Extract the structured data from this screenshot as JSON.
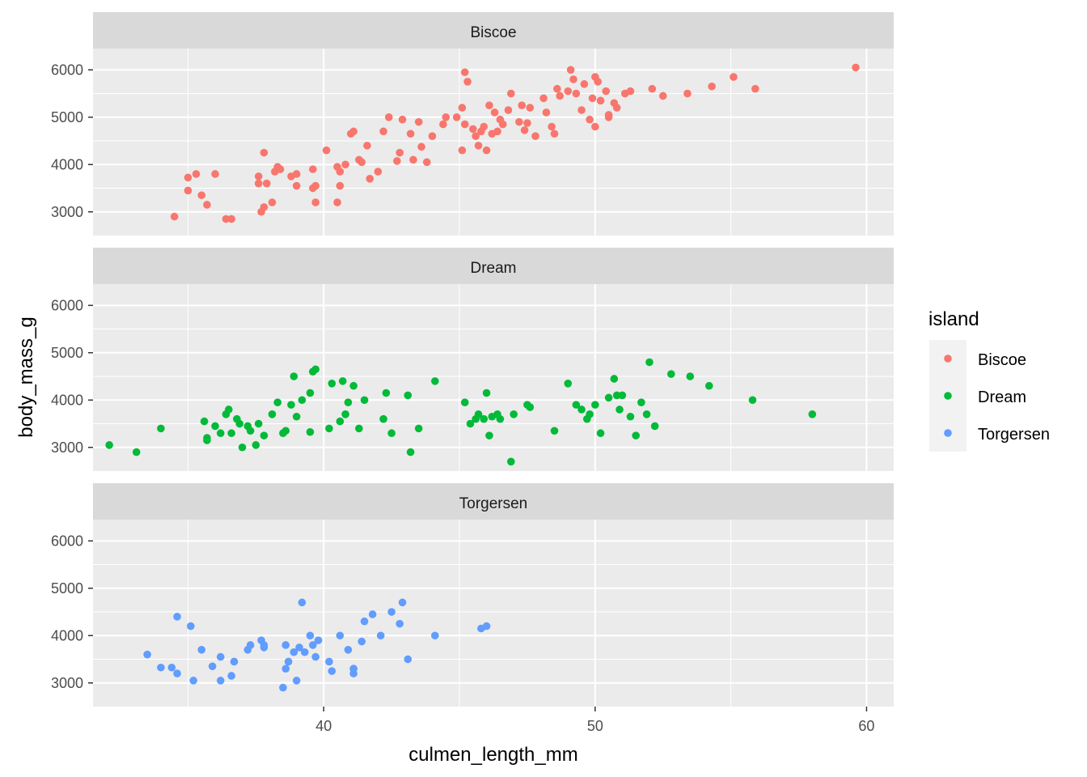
{
  "chart_data": {
    "type": "scatter",
    "facet_by": "island",
    "xlabel": "culmen_length_mm",
    "ylabel": "body_mass_g",
    "x_ticks": [
      40,
      50,
      60
    ],
    "y_ticks": [
      3000,
      4000,
      5000,
      6000
    ],
    "xlim": [
      31.5,
      61.0
    ],
    "ylim": [
      2500,
      6450
    ],
    "grid": true,
    "legend": {
      "title": "island",
      "position": "right",
      "entries": [
        {
          "label": "Biscoe",
          "color": "#F8766D"
        },
        {
          "label": "Dream",
          "color": "#00BA38"
        },
        {
          "label": "Torgersen",
          "color": "#619CFF"
        }
      ]
    },
    "panels": [
      {
        "strip": "Biscoe",
        "color": "#F8766D",
        "points": [
          [
            34.5,
            2900
          ],
          [
            35.0,
            3450
          ],
          [
            35.0,
            3725
          ],
          [
            35.3,
            3800
          ],
          [
            35.5,
            3350
          ],
          [
            35.7,
            3150
          ],
          [
            36.0,
            3800
          ],
          [
            36.4,
            2850
          ],
          [
            36.6,
            2850
          ],
          [
            37.6,
            3750
          ],
          [
            37.6,
            3600
          ],
          [
            37.7,
            3000
          ],
          [
            37.8,
            3100
          ],
          [
            37.8,
            4250
          ],
          [
            37.9,
            3600
          ],
          [
            38.1,
            3200
          ],
          [
            38.2,
            3850
          ],
          [
            38.3,
            3950
          ],
          [
            38.4,
            3900
          ],
          [
            38.8,
            3750
          ],
          [
            39.0,
            3800
          ],
          [
            39.0,
            3550
          ],
          [
            39.6,
            3500
          ],
          [
            39.6,
            3900
          ],
          [
            39.7,
            3550
          ],
          [
            39.7,
            3200
          ],
          [
            40.1,
            4300
          ],
          [
            40.5,
            3200
          ],
          [
            40.5,
            3950
          ],
          [
            40.6,
            3550
          ],
          [
            40.6,
            3850
          ],
          [
            40.8,
            4000
          ],
          [
            41.0,
            4650
          ],
          [
            41.1,
            4700
          ],
          [
            41.3,
            4100
          ],
          [
            41.4,
            4050
          ],
          [
            41.6,
            4400
          ],
          [
            41.7,
            3700
          ],
          [
            42.0,
            3850
          ],
          [
            42.2,
            4700
          ],
          [
            42.7,
            4075
          ],
          [
            42.8,
            4250
          ],
          [
            42.9,
            4950
          ],
          [
            43.2,
            4650
          ],
          [
            43.3,
            4100
          ],
          [
            43.5,
            4900
          ],
          [
            43.8,
            4050
          ],
          [
            44.0,
            4600
          ],
          [
            44.5,
            5000
          ],
          [
            44.9,
            5000
          ],
          [
            45.1,
            5200
          ],
          [
            45.3,
            5750
          ],
          [
            45.2,
            4850
          ],
          [
            45.1,
            4300
          ],
          [
            45.5,
            4750
          ],
          [
            45.7,
            4400
          ],
          [
            45.9,
            4800
          ],
          [
            46.1,
            5250
          ],
          [
            46.2,
            4650
          ],
          [
            46.4,
            4700
          ],
          [
            46.5,
            4950
          ],
          [
            46.8,
            5150
          ],
          [
            47.2,
            4900
          ],
          [
            47.3,
            5250
          ],
          [
            47.4,
            4725
          ],
          [
            47.6,
            5200
          ],
          [
            47.8,
            4600
          ],
          [
            48.2,
            5100
          ],
          [
            48.4,
            4800
          ],
          [
            48.5,
            4650
          ],
          [
            48.7,
            5450
          ],
          [
            49.1,
            6000
          ],
          [
            49.2,
            5800
          ],
          [
            49.3,
            5500
          ],
          [
            49.5,
            5150
          ],
          [
            49.6,
            5700
          ],
          [
            49.8,
            4950
          ],
          [
            50.0,
            5850
          ],
          [
            50.1,
            5750
          ],
          [
            50.2,
            5350
          ],
          [
            50.4,
            5550
          ],
          [
            50.5,
            5000
          ],
          [
            50.7,
            5300
          ],
          [
            50.8,
            5200
          ],
          [
            51.1,
            5500
          ],
          [
            51.3,
            5550
          ],
          [
            52.1,
            5600
          ],
          [
            52.5,
            5450
          ],
          [
            53.4,
            5500
          ],
          [
            54.3,
            5650
          ],
          [
            55.1,
            5850
          ],
          [
            55.9,
            5600
          ],
          [
            59.6,
            6050
          ],
          [
            45.2,
            5950
          ],
          [
            46.0,
            4300
          ],
          [
            46.6,
            4850
          ],
          [
            47.5,
            4875
          ],
          [
            48.1,
            5400
          ],
          [
            49.0,
            5550
          ],
          [
            50.0,
            4800
          ],
          [
            50.5,
            5050
          ],
          [
            44.4,
            4850
          ],
          [
            45.8,
            4700
          ],
          [
            46.9,
            5500
          ],
          [
            48.6,
            5600
          ],
          [
            49.9,
            5400
          ],
          [
            42.4,
            5000
          ],
          [
            43.6,
            4375
          ],
          [
            45.6,
            4600
          ],
          [
            46.3,
            5100
          ]
        ]
      },
      {
        "strip": "Dream",
        "color": "#00BA38",
        "points": [
          [
            32.1,
            3050
          ],
          [
            33.1,
            2900
          ],
          [
            34.0,
            3400
          ],
          [
            35.6,
            3550
          ],
          [
            35.7,
            3200
          ],
          [
            36.0,
            3450
          ],
          [
            36.2,
            3300
          ],
          [
            36.4,
            3700
          ],
          [
            36.5,
            3800
          ],
          [
            36.6,
            3300
          ],
          [
            36.9,
            3500
          ],
          [
            37.0,
            3000
          ],
          [
            37.2,
            3450
          ],
          [
            37.3,
            3350
          ],
          [
            37.5,
            3050
          ],
          [
            37.8,
            3250
          ],
          [
            38.1,
            3700
          ],
          [
            38.3,
            3950
          ],
          [
            38.6,
            3350
          ],
          [
            38.8,
            3900
          ],
          [
            39.2,
            4000
          ],
          [
            39.5,
            4150
          ],
          [
            39.6,
            4600
          ],
          [
            39.7,
            4650
          ],
          [
            40.2,
            3400
          ],
          [
            40.3,
            4350
          ],
          [
            40.6,
            3550
          ],
          [
            40.8,
            3700
          ],
          [
            41.1,
            4300
          ],
          [
            41.5,
            4000
          ],
          [
            42.2,
            3600
          ],
          [
            42.3,
            4150
          ],
          [
            42.5,
            3300
          ],
          [
            43.1,
            4100
          ],
          [
            43.2,
            2900
          ],
          [
            44.1,
            4400
          ],
          [
            45.2,
            3950
          ],
          [
            45.4,
            3500
          ],
          [
            45.6,
            3600
          ],
          [
            45.9,
            3600
          ],
          [
            46.0,
            4150
          ],
          [
            46.2,
            3650
          ],
          [
            46.4,
            3700
          ],
          [
            46.5,
            3600
          ],
          [
            46.9,
            2700
          ],
          [
            47.0,
            3700
          ],
          [
            47.5,
            3900
          ],
          [
            48.5,
            3350
          ],
          [
            49.0,
            4350
          ],
          [
            49.3,
            3900
          ],
          [
            49.5,
            3800
          ],
          [
            49.7,
            3600
          ],
          [
            50.0,
            3900
          ],
          [
            50.2,
            3300
          ],
          [
            50.5,
            4050
          ],
          [
            50.7,
            4450
          ],
          [
            51.0,
            4100
          ],
          [
            51.3,
            3650
          ],
          [
            51.5,
            3250
          ],
          [
            51.7,
            3950
          ],
          [
            52.0,
            4800
          ],
          [
            52.2,
            3450
          ],
          [
            52.8,
            4550
          ],
          [
            53.5,
            4500
          ],
          [
            54.2,
            4300
          ],
          [
            55.8,
            4000
          ],
          [
            58.0,
            3700
          ],
          [
            38.9,
            4500
          ],
          [
            39.5,
            3325
          ],
          [
            40.9,
            3950
          ],
          [
            36.8,
            3600
          ],
          [
            41.3,
            3400
          ],
          [
            40.7,
            4400
          ],
          [
            46.1,
            3250
          ],
          [
            49.8,
            3700
          ],
          [
            50.9,
            3800
          ],
          [
            45.7,
            3700
          ],
          [
            47.6,
            3850
          ],
          [
            50.8,
            4100
          ],
          [
            51.9,
            3700
          ],
          [
            43.5,
            3400
          ],
          [
            37.6,
            3500
          ],
          [
            35.7,
            3150
          ],
          [
            39.0,
            3650
          ],
          [
            38.5,
            3300
          ]
        ]
      },
      {
        "strip": "Torgersen",
        "color": "#619CFF",
        "points": [
          [
            33.5,
            3600
          ],
          [
            34.4,
            3325
          ],
          [
            34.6,
            3200
          ],
          [
            34.6,
            4400
          ],
          [
            35.1,
            4200
          ],
          [
            35.2,
            3050
          ],
          [
            35.5,
            3700
          ],
          [
            35.9,
            3350
          ],
          [
            36.2,
            3050
          ],
          [
            36.6,
            3150
          ],
          [
            36.7,
            3450
          ],
          [
            37.2,
            3700
          ],
          [
            37.3,
            3800
          ],
          [
            37.7,
            3900
          ],
          [
            37.8,
            3800
          ],
          [
            38.6,
            3300
          ],
          [
            38.6,
            3800
          ],
          [
            38.7,
            3450
          ],
          [
            38.9,
            3650
          ],
          [
            39.0,
            3050
          ],
          [
            39.1,
            3750
          ],
          [
            39.2,
            4700
          ],
          [
            39.3,
            3650
          ],
          [
            39.6,
            3800
          ],
          [
            39.7,
            3550
          ],
          [
            39.8,
            3900
          ],
          [
            40.2,
            3450
          ],
          [
            40.3,
            3250
          ],
          [
            40.6,
            4000
          ],
          [
            40.9,
            3700
          ],
          [
            41.1,
            3300
          ],
          [
            41.1,
            3200
          ],
          [
            41.4,
            3875
          ],
          [
            41.5,
            4300
          ],
          [
            41.8,
            4450
          ],
          [
            42.1,
            4000
          ],
          [
            42.5,
            4500
          ],
          [
            42.8,
            4250
          ],
          [
            42.9,
            4700
          ],
          [
            43.1,
            3500
          ],
          [
            44.1,
            4000
          ],
          [
            45.8,
            4150
          ],
          [
            46.0,
            4200
          ],
          [
            38.5,
            2900
          ],
          [
            36.2,
            3550
          ],
          [
            37.8,
            3750
          ],
          [
            39.5,
            4000
          ],
          [
            41.1,
            3300
          ],
          [
            34.0,
            3325
          ]
        ]
      }
    ]
  }
}
